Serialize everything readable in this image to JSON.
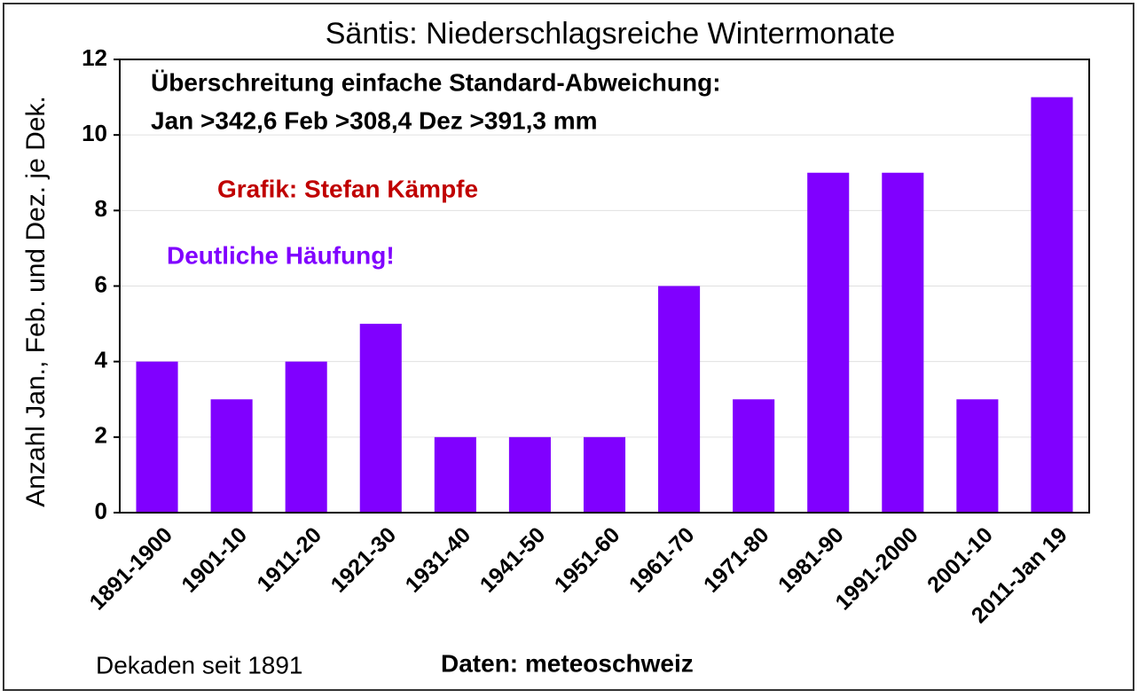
{
  "chart_data": {
    "type": "bar",
    "title": "Säntis: Niederschlagsreiche Wintermonate",
    "y_label": "Anzahl Jan., Feb. und Dez. je Dek.",
    "x_label": "Dekaden seit 1891",
    "source": "Daten: meteoschweiz",
    "annotations": [
      {
        "text": "Überschreitung einfache Standard-Abweichung:",
        "color": "#000000"
      },
      {
        "text": "Jan >342,6 Feb >308,4 Dez >391,3 mm",
        "color": "#000000"
      },
      {
        "text": "Grafik: Stefan Kämpfe",
        "color": "#c00000"
      },
      {
        "text": "Deutliche Häufung!",
        "color": "#8000ff"
      }
    ],
    "categories": [
      "1891-1900",
      "1901-10",
      "1911-20",
      "1921-30",
      "1931-40",
      "1941-50",
      "1951-60",
      "1961-70",
      "1971-80",
      "1981-90",
      "1991-2000",
      "2001-10",
      "2011-Jan 19"
    ],
    "values": [
      4,
      3,
      4,
      5,
      2,
      2,
      2,
      6,
      3,
      9,
      9,
      3,
      11
    ],
    "color": "#8000ff",
    "ylim": [
      0,
      12
    ],
    "yticks": [
      0,
      2,
      4,
      6,
      8,
      10,
      12
    ],
    "grid": true
  }
}
